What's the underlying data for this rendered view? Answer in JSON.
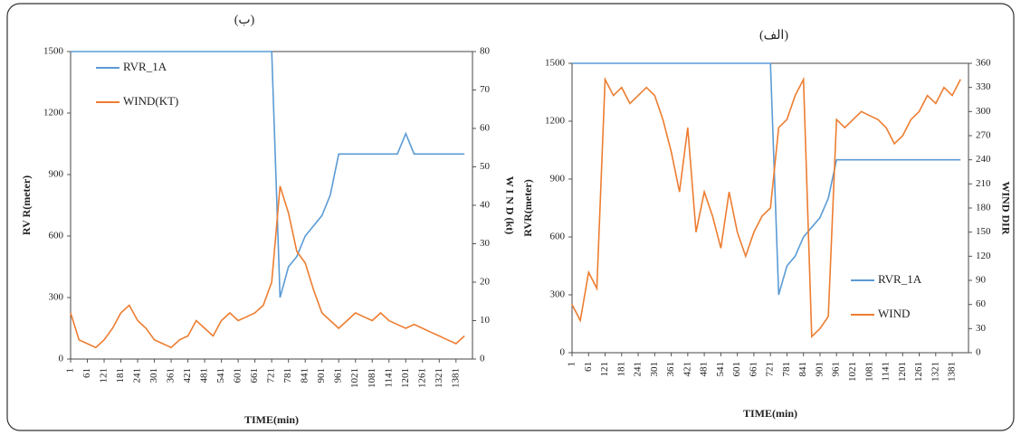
{
  "chart_data": [
    {
      "type": "line",
      "label": "(ب)",
      "x": [
        1,
        31,
        61,
        91,
        121,
        151,
        181,
        211,
        241,
        271,
        301,
        331,
        361,
        391,
        421,
        451,
        481,
        511,
        541,
        571,
        601,
        631,
        661,
        691,
        721,
        751,
        781,
        811,
        841,
        871,
        901,
        931,
        961,
        991,
        1021,
        1051,
        1081,
        1111,
        1141,
        1171,
        1201,
        1231,
        1261,
        1291,
        1321,
        1351,
        1381,
        1411
      ],
      "xlim": [
        1,
        1440
      ],
      "xticks": [
        1,
        61,
        121,
        181,
        241,
        301,
        361,
        421,
        481,
        541,
        601,
        661,
        721,
        781,
        841,
        901,
        961,
        1021,
        1081,
        1141,
        1201,
        1261,
        1321,
        1381
      ],
      "xlabel": "TIME(min)",
      "ylabel": "RV R(meter)",
      "y2label": "W I N D (kt)",
      "ylim": [
        0,
        1500
      ],
      "yticks": [
        0,
        300,
        600,
        900,
        1200,
        1500
      ],
      "y2lim": [
        0,
        80
      ],
      "y2ticks": [
        0,
        10,
        20,
        30,
        40,
        50,
        60,
        70,
        80
      ],
      "legend": "top-left",
      "series": [
        {
          "name": "RVR_1A",
          "color": "#5b9bd5",
          "values": [
            1500,
            1500,
            1500,
            1500,
            1500,
            1500,
            1500,
            1500,
            1500,
            1500,
            1500,
            1500,
            1500,
            1500,
            1500,
            1500,
            1500,
            1500,
            1500,
            1500,
            1500,
            1500,
            1500,
            1500,
            1500,
            300,
            450,
            500,
            600,
            650,
            700,
            800,
            1000,
            1000,
            1000,
            1000,
            1000,
            1000,
            1000,
            1000,
            1100,
            1000,
            1000,
            1000,
            1000,
            1000,
            1000,
            1000
          ]
        },
        {
          "name": "WIND(KT)",
          "color": "#ed7d31",
          "axis": "y2",
          "values": [
            12,
            5,
            4,
            3,
            5,
            8,
            12,
            14,
            10,
            8,
            5,
            4,
            3,
            5,
            6,
            10,
            8,
            6,
            10,
            12,
            10,
            11,
            12,
            14,
            20,
            45,
            38,
            28,
            25,
            18,
            12,
            10,
            8,
            10,
            12,
            11,
            10,
            12,
            10,
            9,
            8,
            9,
            8,
            7,
            6,
            5,
            4,
            6
          ]
        }
      ]
    },
    {
      "type": "line",
      "label": "(الف)",
      "x": [
        1,
        31,
        61,
        91,
        121,
        151,
        181,
        211,
        241,
        271,
        301,
        331,
        361,
        391,
        421,
        451,
        481,
        511,
        541,
        571,
        601,
        631,
        661,
        691,
        721,
        751,
        781,
        811,
        841,
        871,
        901,
        931,
        961,
        991,
        1021,
        1051,
        1081,
        1111,
        1141,
        1171,
        1201,
        1231,
        1261,
        1291,
        1321,
        1351,
        1381,
        1411
      ],
      "xlim": [
        1,
        1440
      ],
      "xticks": [
        1,
        61,
        121,
        181,
        241,
        301,
        361,
        421,
        481,
        541,
        601,
        661,
        721,
        781,
        841,
        901,
        961,
        1021,
        1081,
        1141,
        1201,
        1261,
        1321,
        1381
      ],
      "xlabel": "TIME(min)",
      "ylabel": "RVR(meter)",
      "y2label": "WIND DIR",
      "ylim": [
        0,
        1500
      ],
      "yticks": [
        0,
        300,
        600,
        900,
        1200,
        1500
      ],
      "y2lim": [
        0,
        360
      ],
      "y2ticks": [
        0,
        30,
        60,
        90,
        120,
        150,
        180,
        210,
        240,
        270,
        300,
        330,
        360
      ],
      "legend": "bottom-right",
      "series": [
        {
          "name": "RVR_1A",
          "color": "#5b9bd5",
          "values": [
            1500,
            1500,
            1500,
            1500,
            1500,
            1500,
            1500,
            1500,
            1500,
            1500,
            1500,
            1500,
            1500,
            1500,
            1500,
            1500,
            1500,
            1500,
            1500,
            1500,
            1500,
            1500,
            1500,
            1500,
            1500,
            300,
            450,
            500,
            600,
            650,
            700,
            800,
            1000,
            1000,
            1000,
            1000,
            1000,
            1000,
            1000,
            1000,
            1000,
            1000,
            1000,
            1000,
            1000,
            1000,
            1000,
            1000
          ]
        },
        {
          "name": "WIND",
          "color": "#ed7d31",
          "axis": "y2",
          "values": [
            60,
            40,
            100,
            80,
            340,
            320,
            330,
            310,
            320,
            330,
            320,
            290,
            250,
            200,
            280,
            150,
            200,
            170,
            130,
            200,
            150,
            120,
            150,
            170,
            180,
            280,
            290,
            320,
            340,
            20,
            30,
            45,
            290,
            280,
            290,
            300,
            295,
            290,
            280,
            260,
            270,
            290,
            300,
            320,
            310,
            330,
            320,
            340
          ]
        }
      ]
    }
  ]
}
